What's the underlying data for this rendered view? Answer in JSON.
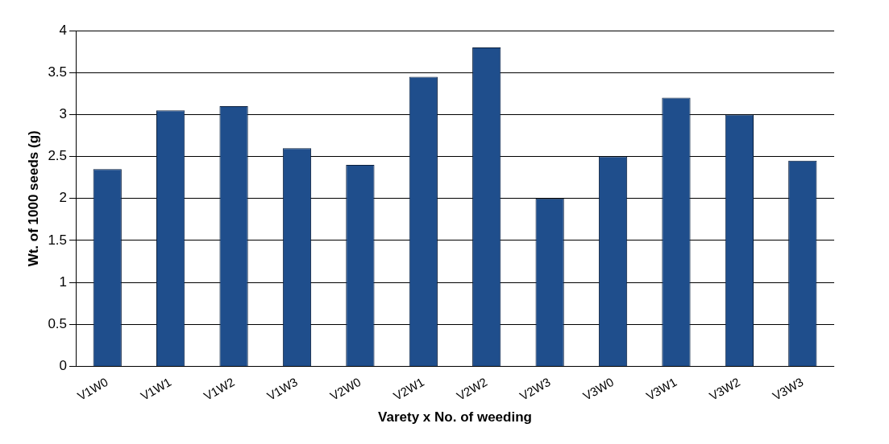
{
  "chart_data": {
    "type": "bar",
    "xlabel": "Varety x No. of weeding",
    "ylabel": "Wt. of 1000 seeds (g)",
    "categories": [
      "V1W0",
      "V1W1",
      "V1W2",
      "V1W3",
      "V2W0",
      "V2W1",
      "V2W2",
      "V2W3",
      "V3W0",
      "V3W1",
      "V3W2",
      "V3W3"
    ],
    "values": [
      2.35,
      3.05,
      3.1,
      2.6,
      2.4,
      3.45,
      3.8,
      2.0,
      2.5,
      3.2,
      3.0,
      2.45
    ],
    "color": "#1f4e8c",
    "ylim": [
      0,
      4
    ],
    "yticks": [
      0,
      0.5,
      1,
      1.5,
      2,
      2.5,
      3,
      3.5,
      4
    ],
    "grid": "y",
    "legend": false
  }
}
